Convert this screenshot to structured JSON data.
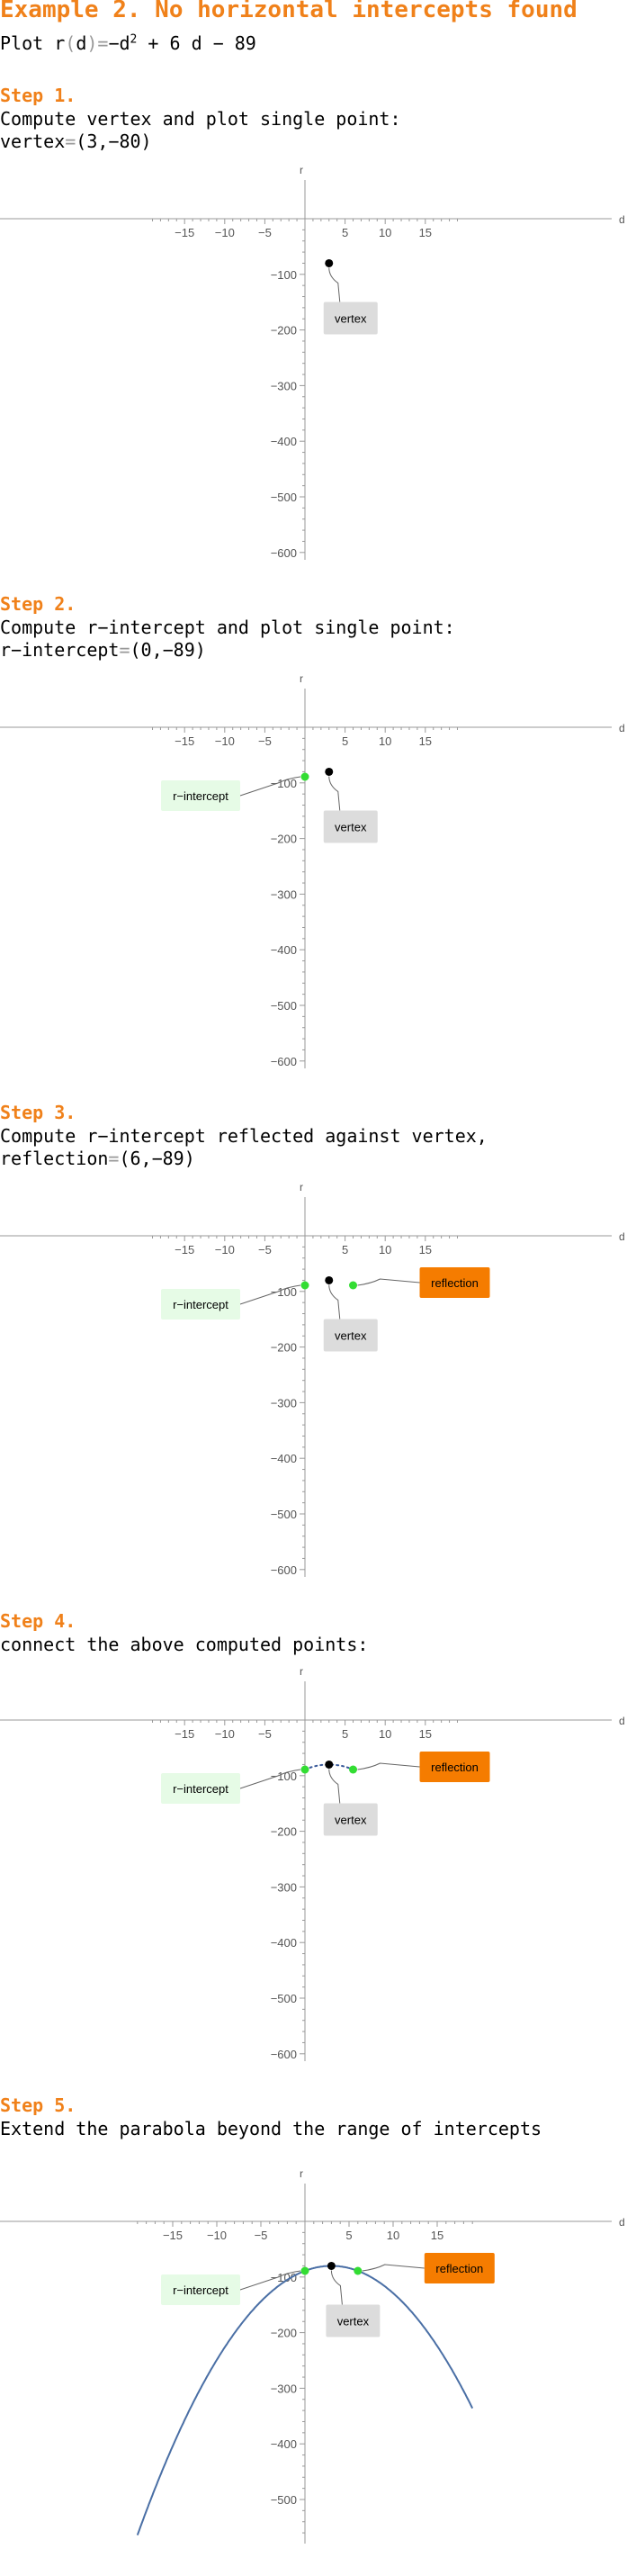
{
  "title": "Example 2. No horizontal intercepts found",
  "plot_line": {
    "prefix": "Plot ",
    "func": "r",
    "arg": "d",
    "eq_tail": " + 6 d − 89",
    "minus_d": "−d",
    "exp": "2"
  },
  "steps": [
    {
      "label": "Step 1.",
      "line1": "Compute vertex and plot single point:",
      "line2_name": "vertex",
      "line2_value": "(3,−80)"
    },
    {
      "label": "Step 2.",
      "line1": "Compute r−intercept and plot single point:",
      "line2_name": "r−intercept",
      "line2_value": "(0,−89)"
    },
    {
      "label": "Step 3.",
      "line1": "Compute r−intercept reflected against vertex,",
      "line2_name": "reflection",
      "line2_value": "(6,−89)"
    },
    {
      "label": "Step 4.",
      "line1": "connect the above computed points:",
      "line2_name": "",
      "line2_value": ""
    },
    {
      "label": "Step 5.",
      "line1": "Extend the parabola beyond the range of intercepts",
      "line2_name": "",
      "line2_value": ""
    }
  ],
  "chart_data": [
    {
      "type": "scatter",
      "xlabel": "d",
      "ylabel": "r",
      "xlim": [
        -19,
        19
      ],
      "ylim": [
        -620,
        0
      ],
      "x_ticks": [
        -15,
        -10,
        -5,
        5,
        10,
        15
      ],
      "y_ticks": [
        -100,
        -200,
        -300,
        -400,
        -500,
        -600
      ],
      "points": [
        {
          "x": 3,
          "y": -80,
          "label": "vertex",
          "color": "#000000"
        }
      ],
      "curve": "none",
      "colors": {
        "vertex_label_bg": "#dcdcdc"
      }
    },
    {
      "type": "scatter",
      "xlabel": "d",
      "ylabel": "r",
      "xlim": [
        -19,
        19
      ],
      "ylim": [
        -620,
        0
      ],
      "x_ticks": [
        -15,
        -10,
        -5,
        5,
        10,
        15
      ],
      "y_ticks": [
        -100,
        -200,
        -300,
        -400,
        -500,
        -600
      ],
      "points": [
        {
          "x": 0,
          "y": -89,
          "label": "r−intercept",
          "color": "#33dd33"
        },
        {
          "x": 3,
          "y": -80,
          "label": "vertex",
          "color": "#000000"
        }
      ],
      "curve": "none",
      "colors": {
        "intercept_label_bg": "#e6fbe6"
      }
    },
    {
      "type": "scatter",
      "xlabel": "d",
      "ylabel": "r",
      "xlim": [
        -19,
        19
      ],
      "ylim": [
        -620,
        0
      ],
      "x_ticks": [
        -15,
        -10,
        -5,
        5,
        10,
        15
      ],
      "y_ticks": [
        -100,
        -200,
        -300,
        -400,
        -500,
        -600
      ],
      "points": [
        {
          "x": 0,
          "y": -89,
          "label": "r−intercept",
          "color": "#33dd33"
        },
        {
          "x": 3,
          "y": -80,
          "label": "vertex",
          "color": "#000000"
        },
        {
          "x": 6,
          "y": -89,
          "label": "reflection",
          "color": "#33dd33"
        }
      ],
      "curve": "none",
      "colors": {
        "reflection_label_bg": "#f57c00"
      }
    },
    {
      "type": "line",
      "xlabel": "d",
      "ylabel": "r",
      "xlim": [
        -19,
        19
      ],
      "ylim": [
        -620,
        0
      ],
      "x_ticks": [
        -15,
        -10,
        -5,
        5,
        10,
        15
      ],
      "y_ticks": [
        -100,
        -200,
        -300,
        -400,
        -500,
        -600
      ],
      "points": [
        {
          "x": 0,
          "y": -89,
          "label": "r−intercept",
          "color": "#33dd33"
        },
        {
          "x": 3,
          "y": -80,
          "label": "vertex",
          "color": "#000000"
        },
        {
          "x": 6,
          "y": -89,
          "label": "reflection",
          "color": "#33dd33"
        }
      ],
      "curve": "dotted",
      "curve_range": [
        0,
        6
      ],
      "function": "-d^2+6d-89"
    },
    {
      "type": "line",
      "xlabel": "d",
      "ylabel": "r",
      "xlim": [
        -20,
        20
      ],
      "ylim": [
        -570,
        0
      ],
      "x_ticks": [
        -15,
        -10,
        -5,
        5,
        10,
        15
      ],
      "y_ticks": [
        -100,
        -200,
        -300,
        -400,
        -500
      ],
      "points": [
        {
          "x": 0,
          "y": -89,
          "label": "r−intercept",
          "color": "#33dd33"
        },
        {
          "x": 3,
          "y": -80,
          "label": "vertex",
          "color": "#000000"
        },
        {
          "x": 6,
          "y": -89,
          "label": "reflection",
          "color": "#33dd33"
        }
      ],
      "curve": "solid",
      "curve_range": [
        -19,
        19
      ],
      "function": "-d^2+6d-89",
      "colors": {
        "curve": "#4a6fa5"
      }
    }
  ]
}
